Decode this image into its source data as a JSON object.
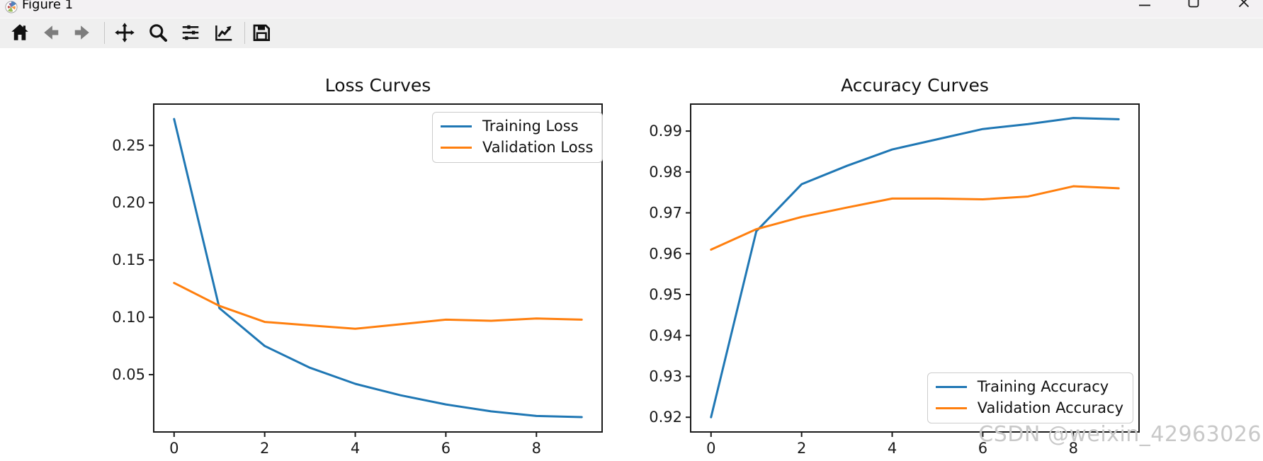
{
  "window": {
    "title": "Figure 1",
    "controls": [
      {
        "name": "minimize"
      },
      {
        "name": "maximize"
      },
      {
        "name": "close"
      }
    ]
  },
  "toolbar": {
    "buttons": [
      {
        "icon": "home"
      },
      {
        "icon": "back"
      },
      {
        "icon": "forward"
      },
      {
        "icon": "pan"
      },
      {
        "icon": "zoom-to-rect"
      },
      {
        "icon": "configure-subplots"
      },
      {
        "icon": "edit-parameters"
      },
      {
        "icon": "save"
      }
    ]
  },
  "watermark": {
    "text": "CSDN @weixin_42963026",
    "color": "#c8c8c8"
  },
  "chart_data": [
    {
      "type": "line",
      "title": "Loss Curves",
      "xlabel": "",
      "ylabel": "",
      "grid": false,
      "legend_position": "upper right",
      "x": [
        0,
        1,
        2,
        3,
        4,
        5,
        6,
        7,
        8,
        9
      ],
      "xlim": [
        -0.45,
        9.45
      ],
      "ylim": [
        0.0,
        0.286
      ],
      "xticks": {
        "values": [
          0,
          2,
          4,
          6,
          8
        ],
        "labels": [
          "0",
          "2",
          "4",
          "6",
          "8"
        ]
      },
      "yticks": {
        "values": [
          0.05,
          0.1,
          0.15,
          0.2,
          0.25
        ],
        "labels": [
          "0.05",
          "0.10",
          "0.15",
          "0.20",
          "0.25"
        ]
      },
      "series": [
        {
          "name": "Training Loss",
          "color": "#1f77b4",
          "values": [
            0.273,
            0.108,
            0.075,
            0.056,
            0.042,
            0.032,
            0.024,
            0.018,
            0.014,
            0.013
          ]
        },
        {
          "name": "Validation Loss",
          "color": "#ff7f0e",
          "values": [
            0.13,
            0.11,
            0.096,
            0.093,
            0.09,
            0.094,
            0.098,
            0.097,
            0.099,
            0.098
          ]
        }
      ]
    },
    {
      "type": "line",
      "title": "Accuracy Curves",
      "xlabel": "",
      "ylabel": "",
      "grid": false,
      "legend_position": "lower right",
      "x": [
        0,
        1,
        2,
        3,
        4,
        5,
        6,
        7,
        8,
        9
      ],
      "xlim": [
        -0.45,
        9.45
      ],
      "ylim": [
        0.9164,
        0.9966
      ],
      "xticks": {
        "values": [
          0,
          2,
          4,
          6,
          8
        ],
        "labels": [
          "0",
          "2",
          "4",
          "6",
          "8"
        ]
      },
      "yticks": {
        "values": [
          0.92,
          0.93,
          0.94,
          0.95,
          0.96,
          0.97,
          0.98,
          0.99
        ],
        "labels": [
          "0.92",
          "0.93",
          "0.94",
          "0.95",
          "0.96",
          "0.97",
          "0.98",
          "0.99"
        ]
      },
      "series": [
        {
          "name": "Training Accuracy",
          "color": "#1f77b4",
          "values": [
            0.92,
            0.9655,
            0.977,
            0.9815,
            0.9855,
            0.988,
            0.9905,
            0.9917,
            0.9932,
            0.9929
          ]
        },
        {
          "name": "Validation Accuracy",
          "color": "#ff7f0e",
          "values": [
            0.961,
            0.966,
            0.969,
            0.9713,
            0.9735,
            0.9735,
            0.9733,
            0.974,
            0.9765,
            0.976
          ]
        }
      ]
    }
  ]
}
